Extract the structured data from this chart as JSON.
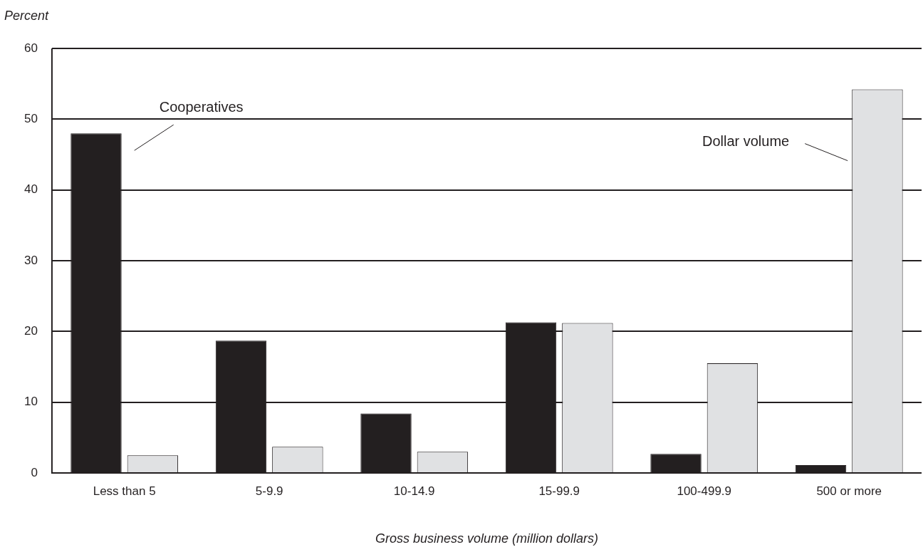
{
  "chart_data": {
    "type": "bar",
    "ylabel": "Percent",
    "xlabel": "Gross business volume (million dollars)",
    "categories": [
      "Less than 5",
      "5-9.9",
      "10-14.9",
      "15-99.9",
      "100-499.9",
      "500 or more"
    ],
    "series": [
      {
        "name": "Cooperatives",
        "color": "#231f20",
        "values": [
          48.0,
          18.7,
          8.4,
          21.3,
          2.7,
          1.1
        ]
      },
      {
        "name": "Dollar volume",
        "color": "#e0e1e3",
        "values": [
          2.5,
          3.7,
          3.0,
          21.2,
          15.5,
          54.2
        ]
      }
    ],
    "ylim": [
      0,
      60
    ],
    "yticks": [
      0,
      10,
      20,
      30,
      40,
      50,
      60
    ],
    "grid": "y",
    "legend": false
  }
}
